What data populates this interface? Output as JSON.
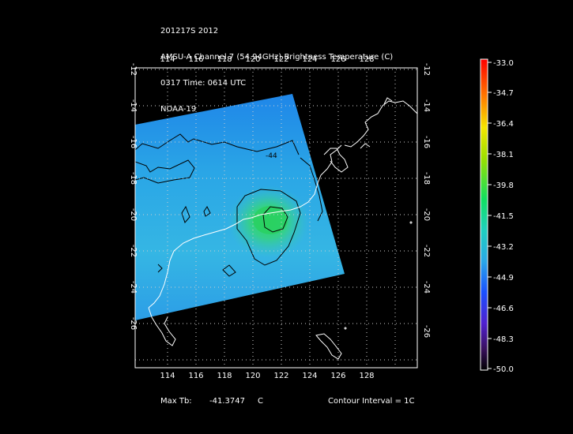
{
  "header": {
    "line1": "201217S 2012",
    "line2": "AMSU-A Channel 7 (54.94GHz) Brightness Temperature (C)",
    "line3": "0317 Time: 0614 UTC",
    "line4": "NOAA-19"
  },
  "map": {
    "lon_ticks": [
      "114",
      "116",
      "118",
      "120",
      "122",
      "124",
      "126",
      "128"
    ],
    "lat_ticks": [
      "-12",
      "-14",
      "-16",
      "-18",
      "-20",
      "-22",
      "-24",
      "-26"
    ],
    "contour_label": "-44"
  },
  "colorbar": {
    "labels": [
      "-33.0",
      "-34.7",
      "-36.4",
      "-38.1",
      "-39.8",
      "-41.5",
      "-43.2",
      "-44.9",
      "-46.6",
      "-48.3",
      "-50.0"
    ]
  },
  "footer": {
    "max_tb_label": "Max Tb:",
    "max_tb_value": "-41.3747",
    "max_tb_unit": "C",
    "contour_interval": "Contour Interval = 1C"
  }
}
